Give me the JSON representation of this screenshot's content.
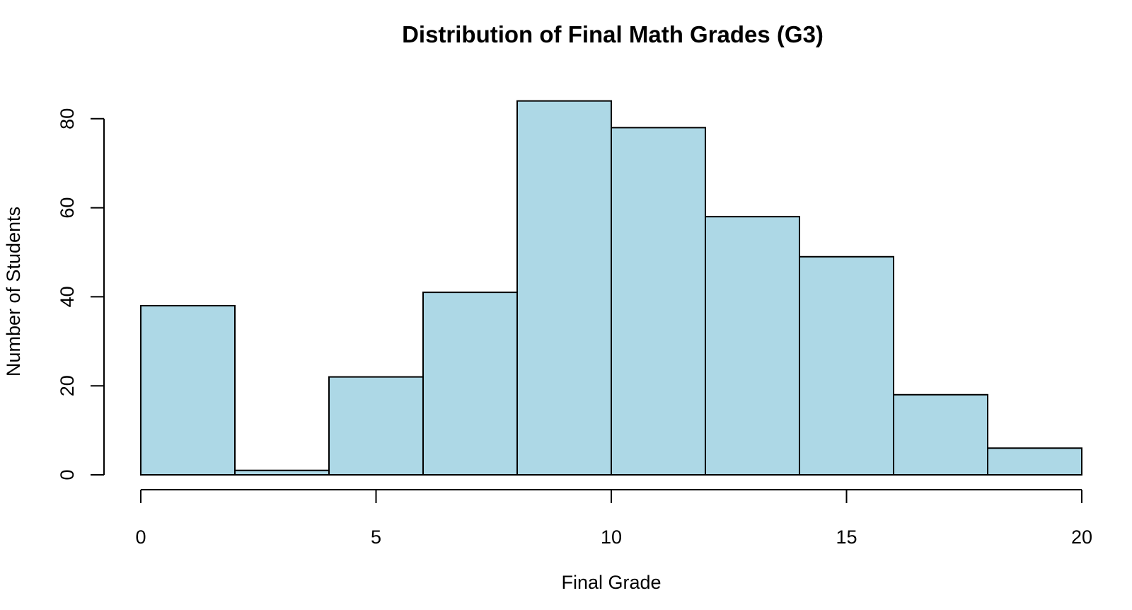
{
  "chart_data": {
    "type": "bar",
    "subtype": "histogram",
    "title": "Distribution of Final Math Grades (G3)",
    "xlabel": "Final Grade",
    "ylabel": "Number of Students",
    "bins": [
      [
        0,
        2
      ],
      [
        2,
        4
      ],
      [
        4,
        6
      ],
      [
        6,
        8
      ],
      [
        8,
        10
      ],
      [
        10,
        12
      ],
      [
        12,
        14
      ],
      [
        14,
        16
      ],
      [
        16,
        18
      ],
      [
        18,
        20
      ]
    ],
    "categories": [
      "0-2",
      "2-4",
      "4-6",
      "6-8",
      "8-10",
      "10-12",
      "12-14",
      "14-16",
      "16-18",
      "18-20"
    ],
    "values": [
      38,
      1,
      22,
      41,
      84,
      78,
      58,
      49,
      18,
      6
    ],
    "xlim": [
      0,
      20
    ],
    "ylim": [
      0,
      84
    ],
    "x_ticks": [
      0,
      5,
      10,
      15,
      20
    ],
    "y_ticks": [
      0,
      20,
      40,
      60,
      80
    ],
    "grid": false,
    "legend": null,
    "bar_color": "#ADD8E6",
    "edge_color": "#000000"
  },
  "labels": {
    "title": "Distribution of Final Math Grades (G3)",
    "xlabel": "Final Grade",
    "ylabel": "Number of Students"
  }
}
